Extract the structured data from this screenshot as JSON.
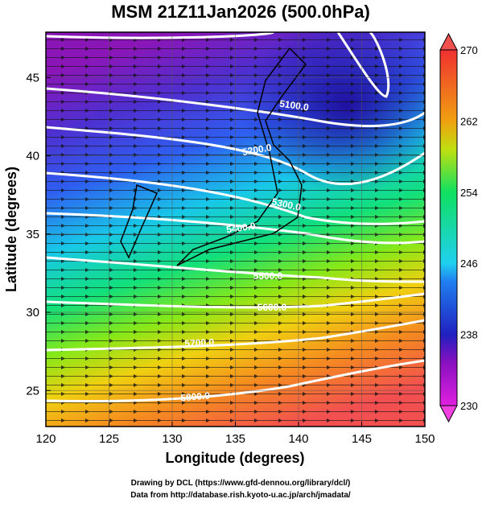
{
  "map": {
    "title": "MSM 21Z11Jan2026 (500.0hPa)",
    "xlabel": "Longitude (degrees)",
    "ylabel": "Latitude  (degrees)",
    "xlim": [
      120,
      150
    ],
    "xticks": [
      120,
      125,
      130,
      135,
      140,
      145,
      150
    ],
    "ylim": [
      22.7,
      47.9
    ],
    "yticks": [
      25,
      30,
      35,
      40,
      45
    ],
    "grid": true,
    "colorbar": {
      "lim": [
        230,
        270
      ],
      "ticks": [
        230,
        238,
        246,
        254,
        262,
        270
      ]
    },
    "contour_labels": [
      "5100.0",
      "5200.0",
      "5300.0",
      "5400.0",
      "5500.0",
      "5600.0",
      "5700.0",
      "5800.0"
    ],
    "credits": [
      "Drawing by DCL (https://www.gfd-dennou.org/library/dcl/)",
      "Data from http://database.rish.kyoto-u.ac.jp/arch/jmadata/"
    ]
  }
}
